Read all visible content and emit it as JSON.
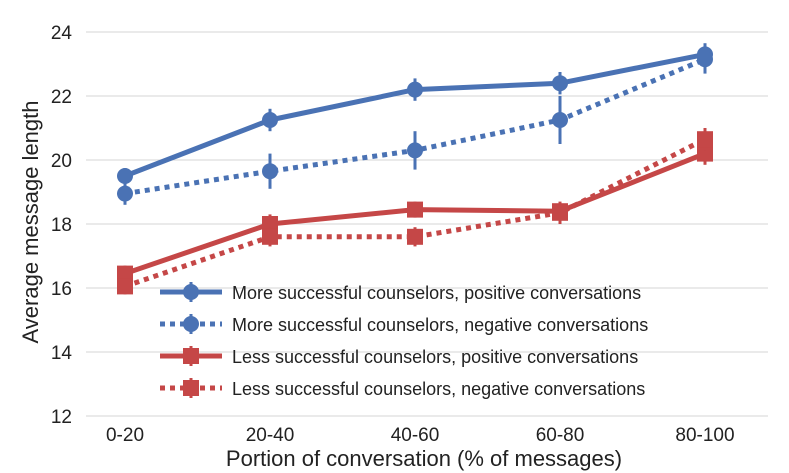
{
  "chart_data": {
    "type": "line",
    "xlabel": "Portion of conversation (% of messages)",
    "ylabel": "Average message length",
    "ylim": [
      12,
      24
    ],
    "yticks": [
      12,
      14,
      16,
      18,
      20,
      22,
      24
    ],
    "grid": "horizontal",
    "legend_position": "bottom-right",
    "categories": [
      "0-20",
      "20-40",
      "40-60",
      "60-80",
      "80-100"
    ],
    "series": [
      {
        "name": "More successful counselors, positive conversations",
        "color": "#4a72b4",
        "style": "solid",
        "marker": "circle",
        "values": [
          19.5,
          21.25,
          22.2,
          22.4,
          23.3
        ],
        "error": [
          0.25,
          0.35,
          0.35,
          0.35,
          0.35
        ]
      },
      {
        "name": "More successful counselors, negative conversations",
        "color": "#4a72b4",
        "style": "dotted",
        "marker": "circle",
        "values": [
          18.95,
          19.65,
          20.3,
          21.25,
          23.15
        ],
        "error": [
          0.35,
          0.55,
          0.6,
          0.75,
          0.45
        ]
      },
      {
        "name": "Less successful counselors, positive conversations",
        "color": "#c54747",
        "style": "solid",
        "marker": "square",
        "values": [
          16.45,
          18.0,
          18.45,
          18.4,
          20.2
        ],
        "error": [
          0.25,
          0.3,
          0.25,
          0.25,
          0.35
        ]
      },
      {
        "name": "Less successful counselors, negative conversations",
        "color": "#c54747",
        "style": "dotted",
        "marker": "square",
        "values": [
          16.05,
          17.6,
          17.6,
          18.35,
          20.65
        ],
        "error": [
          0.25,
          0.3,
          0.3,
          0.35,
          0.35
        ]
      }
    ]
  }
}
